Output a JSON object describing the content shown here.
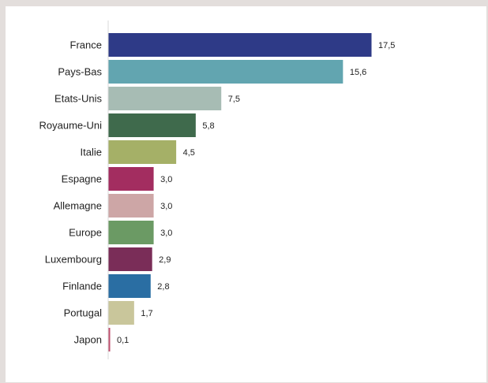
{
  "chart_data": {
    "type": "bar",
    "orientation": "horizontal",
    "title": "",
    "xlabel": "",
    "ylabel": "",
    "categories": [
      "France",
      "Pays-Bas",
      "Etats-Unis",
      "Royaume-Uni",
      "Italie",
      "Espagne",
      "Allemagne",
      "Europe",
      "Luxembourg",
      "Finlande",
      "Portugal",
      "Japon"
    ],
    "values": [
      17.5,
      15.6,
      7.5,
      5.8,
      4.5,
      3.0,
      3.0,
      3.0,
      2.9,
      2.8,
      1.7,
      0.1
    ],
    "value_labels": [
      "17,5",
      "15,6",
      "7,5",
      "5,8",
      "4,5",
      "3,0",
      "3,0",
      "3,0",
      "2,9",
      "2,8",
      "1,7",
      "0,1"
    ],
    "colors": [
      "#2e3a87",
      "#62a5b0",
      "#a7bcb4",
      "#3f6a4c",
      "#a5b067",
      "#a32d60",
      "#cda6a6",
      "#6b9a64",
      "#7a2d58",
      "#2a6ea3",
      "#c9c69b",
      "#c0506f"
    ],
    "xlim": [
      0,
      17.5
    ],
    "grid": false,
    "legend": "none"
  }
}
